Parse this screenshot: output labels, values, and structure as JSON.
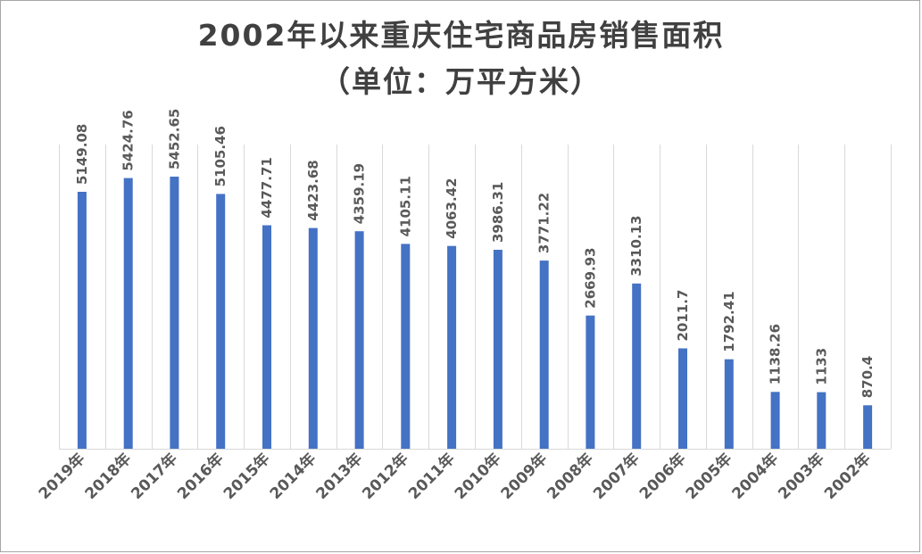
{
  "chart_data": {
    "type": "bar",
    "title": "2002年以来重庆住宅商品房销售面积",
    "subtitle": "（单位：万平方米）",
    "categories": [
      "2019年",
      "2018年",
      "2017年",
      "2016年",
      "2015年",
      "2014年",
      "2013年",
      "2012年",
      "2011年",
      "2010年",
      "2009年",
      "2008年",
      "2007年",
      "2006年",
      "2005年",
      "2004年",
      "2003年",
      "2002年"
    ],
    "values": [
      5149.08,
      5424.76,
      5452.65,
      5105.46,
      4477.71,
      4423.68,
      4359.19,
      4105.11,
      4063.42,
      3986.31,
      3771.22,
      2669.93,
      3310.13,
      2011.7,
      1792.41,
      1138.26,
      1133,
      870.4
    ],
    "value_labels": [
      "5149.08",
      "5424.76",
      "5452.65",
      "5105.46",
      "4477.71",
      "4423.68",
      "4359.19",
      "4105.11",
      "4063.42",
      "3986.31",
      "3771.22",
      "2669.93",
      "3310.13",
      "2011.7",
      "1792.41",
      "1138.26",
      "1133",
      "870.4"
    ],
    "ylim": [
      0,
      6000
    ],
    "grid": "vertical category separators",
    "legend": "none",
    "bar_color": "#4472c4",
    "grid_color": "#d9d9d9",
    "text_color": "#595959"
  }
}
